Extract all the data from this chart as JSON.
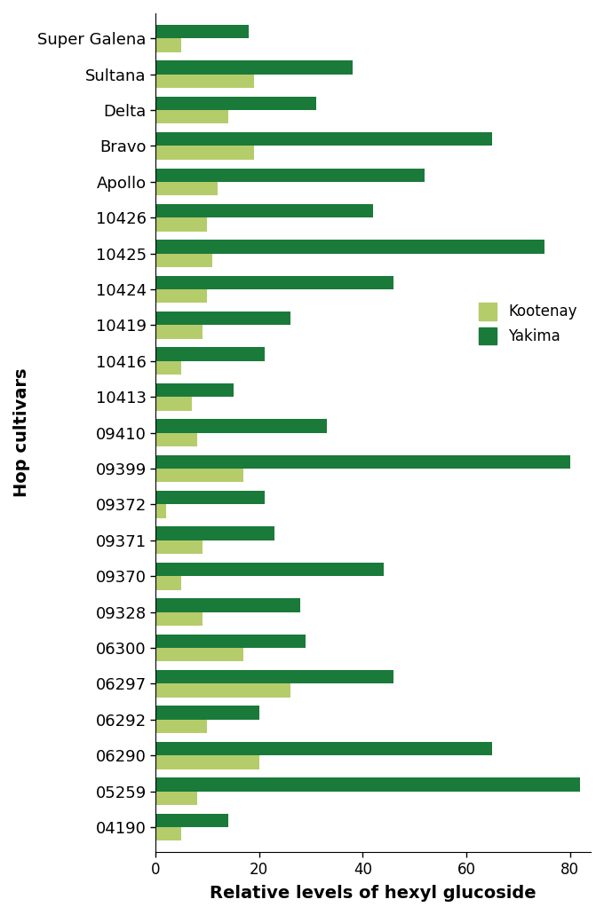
{
  "cultivars": [
    "04190",
    "05259",
    "06290",
    "06292",
    "06297",
    "06300",
    "09328",
    "09370",
    "09371",
    "09372",
    "09399",
    "09410",
    "10413",
    "10416",
    "10419",
    "10424",
    "10425",
    "10426",
    "Apollo",
    "Bravo",
    "Delta",
    "Sultana",
    "Super Galena"
  ],
  "kootenay": [
    5,
    8,
    20,
    10,
    26,
    17,
    9,
    5,
    9,
    2,
    17,
    8,
    7,
    5,
    9,
    10,
    11,
    10,
    12,
    19,
    14,
    19,
    5
  ],
  "yakima": [
    14,
    82,
    65,
    20,
    46,
    29,
    28,
    44,
    23,
    21,
    80,
    33,
    15,
    21,
    26,
    46,
    75,
    42,
    52,
    65,
    31,
    38,
    18
  ],
  "kootenay_color": "#b5cc6a",
  "yakima_color": "#1a7a3a",
  "xlabel": "Relative levels of hexyl glucoside",
  "ylabel": "Hop cultivars",
  "xlim": [
    0,
    84
  ],
  "xticks": [
    0,
    20,
    40,
    60,
    80
  ],
  "legend_kootenay": "Kootenay",
  "legend_yakima": "Yakima",
  "bar_height": 0.38,
  "figsize": [
    6.8,
    10.31
  ],
  "dpi": 100
}
